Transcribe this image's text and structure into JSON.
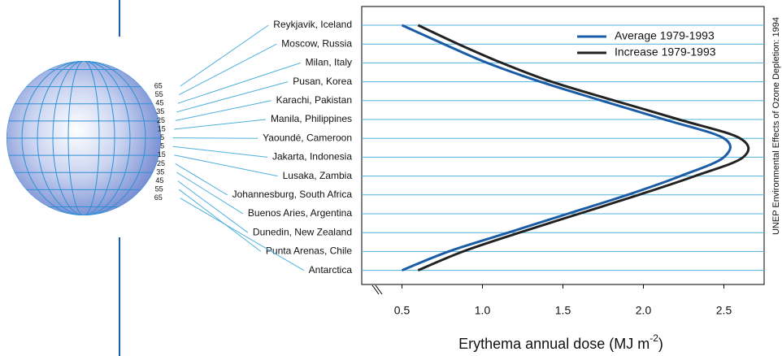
{
  "chart_data": {
    "type": "line",
    "categories": [
      "Reykjavik, Iceland",
      "Moscow, Russia",
      "Milan, Italy",
      "Pusan, Korea",
      "Karachi, Pakistan",
      "Manila, Philippines",
      "Yaoundé, Cameroon",
      "Jakarta, Indonesia",
      "Lusaka, Zambia",
      "Johannesburg, South Africa",
      "Buenos Aries, Argentina",
      "Dunedin, New Zealand",
      "Punta Arenas, Chile",
      "Antarctica"
    ],
    "latitudes": [
      "65",
      "55",
      "45",
      "35",
      "25",
      "15",
      "5",
      "5",
      "15",
      "25",
      "35",
      "45",
      "55",
      "65"
    ],
    "series": [
      {
        "name": "Average 1979-1993",
        "color": "#1a5ca6",
        "values": [
          0.5,
          0.76,
          1.03,
          1.36,
          1.74,
          2.13,
          2.5,
          2.5,
          2.23,
          1.9,
          1.53,
          1.16,
          0.79,
          0.5
        ]
      },
      {
        "name": "Increase 1979-1993",
        "color": "#222222",
        "values": [
          0.6,
          0.85,
          1.12,
          1.43,
          1.82,
          2.22,
          2.6,
          2.62,
          2.32,
          1.97,
          1.6,
          1.23,
          0.88,
          0.6
        ]
      }
    ],
    "xlim": [
      0.25,
      2.75
    ],
    "xticks": [
      0.5,
      {
        "value": 1,
        "label": "1.0"
      },
      1.5,
      {
        "value": 2,
        "label": "2.0"
      },
      2.5
    ],
    "xlabel": {
      "text": "Erythema annual dose (MJ m",
      "superscript": "-2",
      "suffix": ")"
    },
    "source": "UNEP Environmental Effects of Ozone Depletion: 1994",
    "legend": "top-right",
    "grid_color": "#4fb0de"
  }
}
